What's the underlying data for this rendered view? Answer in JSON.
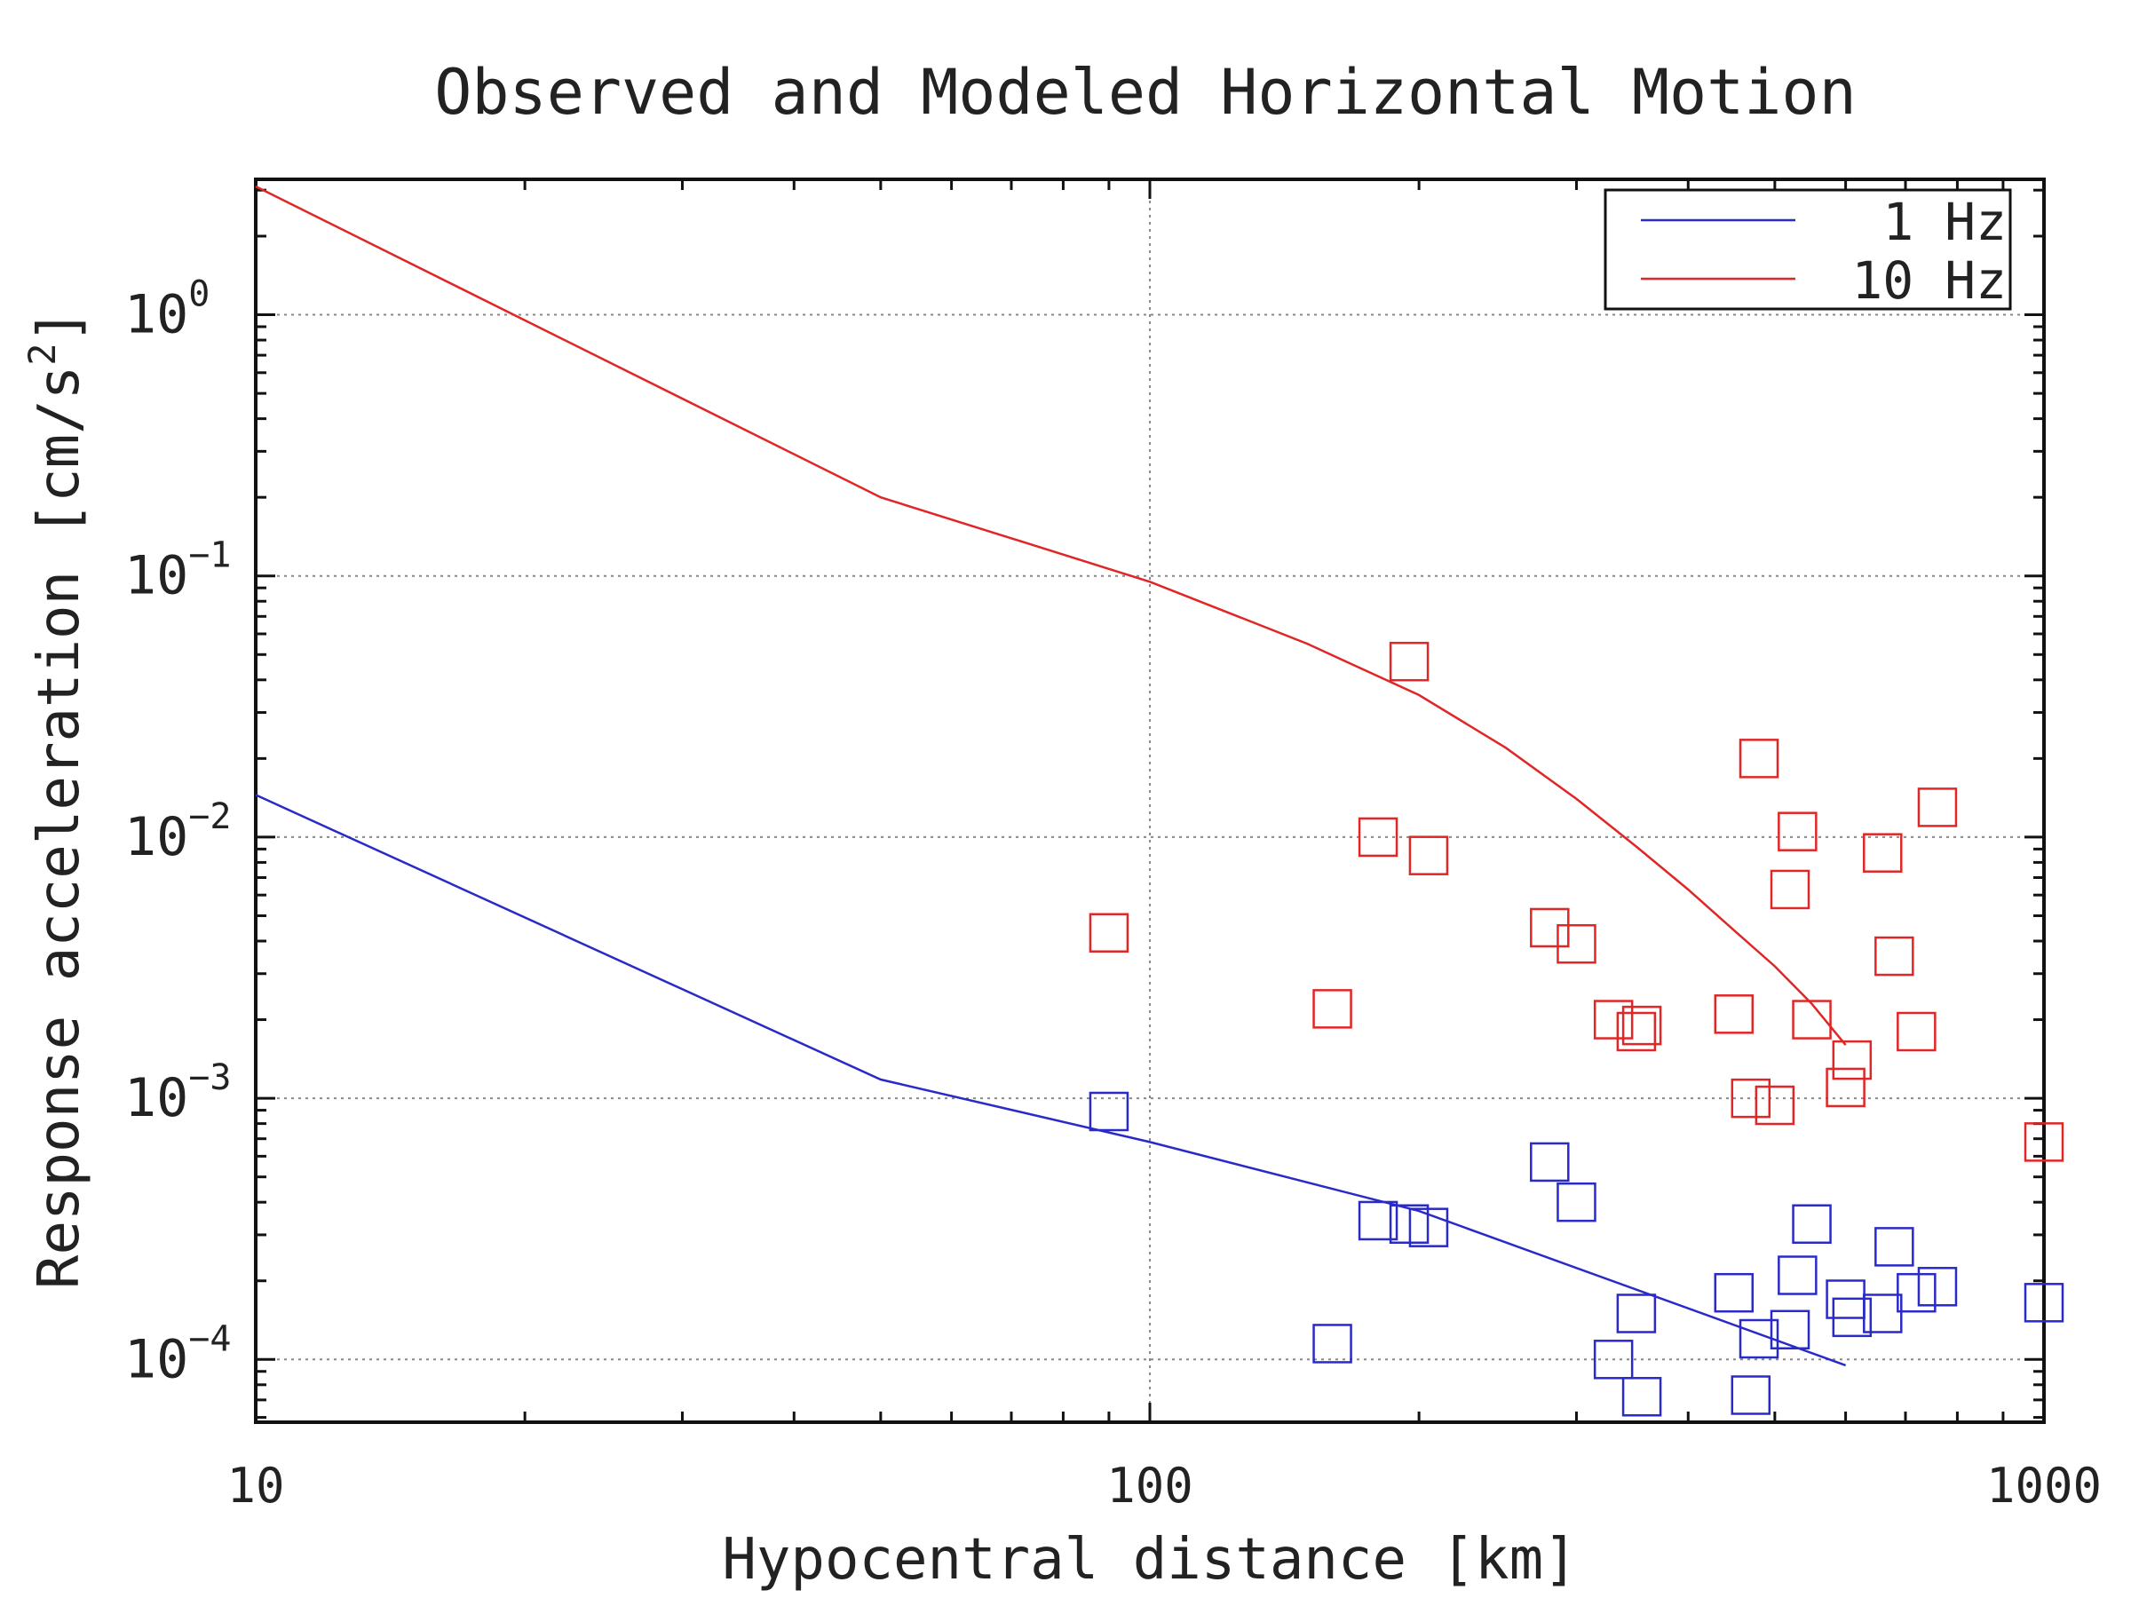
{
  "chart_data": {
    "type": "scatter",
    "title": "Observed and Modeled Horizontal Motion",
    "xlabel": "Hypocentral distance [km]",
    "ylabel": "Response acceleration [cm/s",
    "ylabel_superscript": "2",
    "ylabel_suffix": "]",
    "x_scale": "log",
    "y_scale": "log",
    "xlim": [
      10,
      1000
    ],
    "ylim": [
      5.75e-05,
      3.3
    ],
    "grid": true,
    "legend_position": "top-right",
    "x_ticks": [
      {
        "value": 10,
        "label": "10"
      },
      {
        "value": 100,
        "label": "100"
      },
      {
        "value": 1000,
        "label": "1000"
      }
    ],
    "y_ticks": [
      {
        "value": 1,
        "base": "10",
        "exp": "0"
      },
      {
        "value": 0.1,
        "base": "10",
        "exp": "−1"
      },
      {
        "value": 0.01,
        "base": "10",
        "exp": "−2"
      },
      {
        "value": 0.001,
        "base": "10",
        "exp": "−3"
      },
      {
        "value": 0.0001,
        "base": "10",
        "exp": "−4"
      }
    ],
    "series": [
      {
        "name": "1 Hz",
        "color": "#2a2ac8",
        "line": {
          "x": [
            10,
            50,
            100,
            200,
            600
          ],
          "y": [
            0.0145,
            0.00118,
            0.00068,
            0.00037,
            9.5e-05
          ]
        },
        "points": {
          "x": [
            90,
            160,
            180,
            195,
            205,
            280,
            300,
            330,
            350,
            355,
            450,
            470,
            480,
            520,
            530,
            550,
            600,
            610,
            660,
            680,
            720,
            760,
            1000
          ],
          "y": [
            0.00089,
            0.000115,
            0.00034,
            0.00033,
            0.00032,
            0.00057,
            0.0004,
            0.0001,
            0.00015,
            7.2e-05,
            0.00018,
            7.3e-05,
            0.00012,
            0.00013,
            0.00021,
            0.00033,
            0.00017,
            0.000145,
            0.00015,
            0.00027,
            0.00018,
            0.00019,
            0.000165
          ]
        }
      },
      {
        "name": "10 Hz",
        "color": "#e02626",
        "line": {
          "x": [
            10,
            50,
            100,
            150,
            200,
            250,
            300,
            350,
            400,
            450,
            500,
            550,
            600
          ],
          "y": [
            3.1,
            0.2,
            0.095,
            0.055,
            0.035,
            0.022,
            0.014,
            0.0092,
            0.0063,
            0.0044,
            0.0032,
            0.0023,
            0.0016
          ]
        },
        "points": {
          "x": [
            90,
            160,
            180,
            195,
            205,
            280,
            300,
            330,
            350,
            355,
            450,
            470,
            480,
            500,
            520,
            530,
            550,
            600,
            610,
            660,
            680,
            720,
            760,
            1000
          ],
          "y": [
            0.0043,
            0.0022,
            0.01,
            0.047,
            0.0085,
            0.0045,
            0.0039,
            0.002,
            0.0018,
            0.0019,
            0.0021,
            0.001,
            0.02,
            0.00094,
            0.0063,
            0.0105,
            0.002,
            0.0011,
            0.0014,
            0.0087,
            0.0035,
            0.0018,
            0.013,
            0.00068
          ]
        }
      }
    ]
  }
}
